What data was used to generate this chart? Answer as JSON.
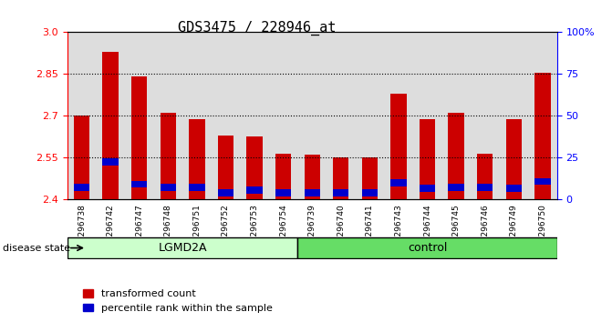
{
  "title": "GDS3475 / 228946_at",
  "samples": [
    "GSM296738",
    "GSM296742",
    "GSM296747",
    "GSM296748",
    "GSM296751",
    "GSM296752",
    "GSM296753",
    "GSM296754",
    "GSM296739",
    "GSM296740",
    "GSM296741",
    "GSM296743",
    "GSM296744",
    "GSM296745",
    "GSM296746",
    "GSM296749",
    "GSM296750"
  ],
  "transformed_counts": [
    2.7,
    2.93,
    2.84,
    2.71,
    2.69,
    2.63,
    2.625,
    2.565,
    2.56,
    2.55,
    2.55,
    2.78,
    2.69,
    2.71,
    2.565,
    2.69,
    2.855
  ],
  "percentile_values": [
    2.445,
    2.535,
    2.455,
    2.445,
    2.445,
    2.425,
    2.435,
    2.425,
    2.425,
    2.425,
    2.425,
    2.46,
    2.44,
    2.445,
    2.445,
    2.44,
    2.465
  ],
  "disease_groups": [
    "LGMD2A",
    "LGMD2A",
    "LGMD2A",
    "LGMD2A",
    "LGMD2A",
    "LGMD2A",
    "LGMD2A",
    "LGMD2A",
    "control",
    "control",
    "control",
    "control",
    "control",
    "control",
    "control",
    "control",
    "control"
  ],
  "ymin": 2.4,
  "ymax": 3.0,
  "yticks": [
    2.4,
    2.55,
    2.7,
    2.85,
    3.0
  ],
  "right_yticks": [
    0,
    25,
    50,
    75,
    100
  ],
  "right_ytick_labels": [
    "0",
    "25",
    "50",
    "75",
    "100%"
  ],
  "bar_color": "#CC0000",
  "percentile_color": "#0000CC",
  "lgmd2a_color": "#CCFFCC",
  "control_color": "#66DD66",
  "bg_color": "#DDDDDD",
  "bar_width": 0.55,
  "legend_items": [
    "transformed count",
    "percentile rank within the sample"
  ]
}
